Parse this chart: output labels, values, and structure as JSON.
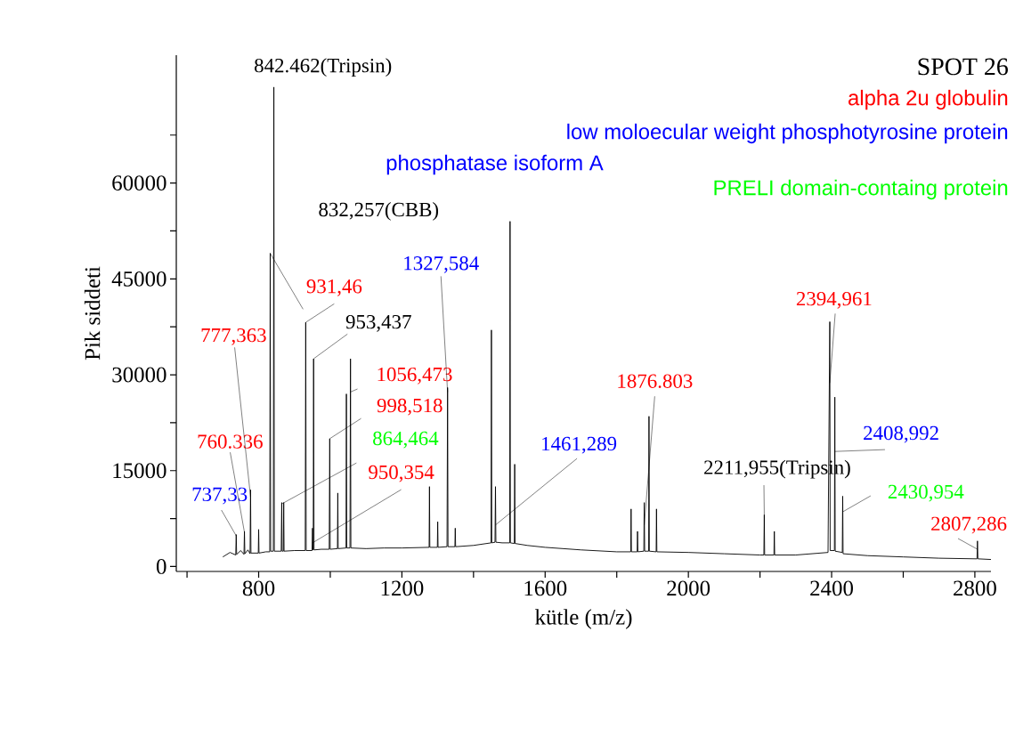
{
  "chart_data": {
    "type": "line",
    "title": "SPOT 26",
    "xlabel": "kütle (m/z)",
    "ylabel": "Pik siddeti",
    "xlim": [
      570,
      2845
    ],
    "ylim": [
      -770,
      80000
    ],
    "xticks": [
      {
        "value": 600,
        "label": null
      },
      800,
      {
        "value": 1000,
        "label": null
      },
      1200,
      {
        "value": 1400,
        "label": null
      },
      1600,
      {
        "value": 1800,
        "label": null
      },
      2000,
      {
        "value": 2200,
        "label": null
      },
      2400,
      {
        "value": 2600,
        "label": null
      },
      2800
    ],
    "yticks": [
      0,
      {
        "value": 7500,
        "label": null
      },
      15000,
      {
        "value": 22500,
        "label": null
      },
      30000,
      {
        "value": 37500,
        "label": null
      },
      45000,
      {
        "value": 52500,
        "label": null
      },
      60000,
      {
        "value": 67500,
        "label": null
      }
    ],
    "marker": "none",
    "line_style": "solid",
    "series": [
      {
        "color": "#000000",
        "x": [
          700,
          720,
          736,
          737.33,
          738.5,
          750,
          759,
          760.336,
          761.5,
          770,
          776,
          777.363,
          778.5,
          799,
          800,
          801,
          820,
          831,
          832.257,
          833.5,
          841,
          842.462,
          843.7,
          863,
          864.464,
          865.5,
          869,
          870,
          871,
          900,
          930,
          931.46,
          932.7,
          949,
          950.354,
          951.5,
          952.3,
          953.437,
          954.6,
          975,
          997,
          998.518,
          999.7,
          1020,
          1021,
          1022,
          1044,
          1045,
          1046,
          1055,
          1056.473,
          1057.6,
          1100,
          1150,
          1200,
          1276,
          1277,
          1278,
          1299,
          1300,
          1301,
          1326,
          1327.584,
          1328.8,
          1348,
          1349,
          1350,
          1400,
          1449,
          1450,
          1451,
          1460,
          1461.289,
          1462.5,
          1480,
          1501,
          1502,
          1503,
          1514,
          1515,
          1516,
          1550,
          1600,
          1700,
          1800,
          1839,
          1840,
          1841,
          1857,
          1858,
          1859,
          1875.6,
          1876.803,
          1878,
          1889,
          1890,
          1891,
          1910,
          1911,
          1912,
          2000,
          2100,
          2200,
          2210.8,
          2211.955,
          2213,
          2239,
          2240,
          2241,
          2300,
          2390,
          2394.961,
          2396,
          2407.8,
          2408.992,
          2410,
          2429.8,
          2430.954,
          2432,
          2500,
          2600,
          2700,
          2806,
          2807.286,
          2808.5,
          2845
        ],
        "values": [
          1500,
          2200,
          1800,
          5000,
          1900,
          2500,
          1900,
          5500,
          2000,
          2600,
          2000,
          12000,
          2100,
          2100,
          5800,
          2100,
          2300,
          2300,
          49000,
          2400,
          2400,
          75000,
          2400,
          2400,
          10000,
          2400,
          2400,
          10000,
          2400,
          2500,
          2500,
          38200,
          2500,
          2500,
          6000,
          2600,
          2600,
          32500,
          2600,
          2700,
          2700,
          20000,
          2700,
          2800,
          11500,
          2800,
          2900,
          27000,
          2900,
          2900,
          32500,
          2900,
          2800,
          2900,
          2900,
          3000,
          12500,
          3000,
          3000,
          7000,
          3000,
          3100,
          28000,
          3100,
          3100,
          6000,
          3100,
          3300,
          3700,
          37000,
          3700,
          3800,
          12500,
          3800,
          3700,
          3700,
          54000,
          3700,
          3600,
          16000,
          3600,
          3300,
          3000,
          2600,
          2300,
          2300,
          9000,
          2300,
          2300,
          5500,
          2300,
          2400,
          10000,
          2400,
          2400,
          23500,
          2400,
          2300,
          9000,
          2300,
          2200,
          2000,
          1800,
          1800,
          8100,
          1800,
          1800,
          5500,
          1800,
          1800,
          2200,
          38300,
          2500,
          2500,
          26500,
          2400,
          2200,
          11000,
          2000,
          1700,
          1500,
          1300,
          1200,
          4000,
          1200,
          1100
        ]
      }
    ],
    "annotations": [
      "alpha 2u globulin",
      "low moloecular weight phosphotyrosine protein",
      "phosphatase isoform A",
      "PRELI domain-containg protein",
      {
        "text": "737,33",
        "x": 737.33,
        "y": 4800
      },
      {
        "text": "760.336",
        "x": 760.336,
        "y": 5350
      },
      {
        "text": "777,363",
        "x": 777.363,
        "y": 10900
      },
      {
        "text": "832,257(CBB)",
        "x": 832.257,
        "y": 49000
      },
      {
        "text": "842.462(Tripsin)",
        "x": 842.462,
        "y": 75000
      },
      {
        "text": "864,464",
        "x": 864.464,
        "y": 9800
      },
      {
        "text": "931,46",
        "x": 931.46,
        "y": 38200
      },
      {
        "text": "950,354",
        "x": 950.354,
        "y": 3700
      },
      {
        "text": "953,437",
        "x": 953.437,
        "y": 32500
      },
      {
        "text": "998,518",
        "x": 998.518,
        "y": 20000
      },
      {
        "text": "1056,473",
        "x": 1056.473,
        "y": 27300
      },
      {
        "text": "1327,584",
        "x": 1327.584,
        "y": 27300
      },
      {
        "text": "1461,289",
        "x": 1461.289,
        "y": 6500
      },
      {
        "text": "1876.803",
        "x": 1876.803,
        "y": 6500
      },
      {
        "text": "2211,955(Tripsin)",
        "x": 2211.955,
        "y": 8100
      },
      {
        "text": "2394,961",
        "x": 2394.961,
        "y": 28700
      },
      {
        "text": "2408,992",
        "x": 2408.992,
        "y": 18000
      },
      {
        "text": "2430,954",
        "x": 2430.954,
        "y": 8550
      },
      {
        "text": "2807,286",
        "x": 2807.286,
        "y": 2700
      }
    ]
  }
}
